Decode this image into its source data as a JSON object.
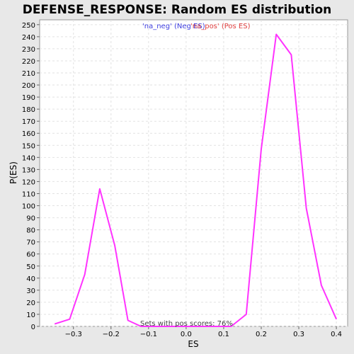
{
  "chart_data": {
    "type": "line",
    "title": "DEFENSE_RESPONSE: Random ES distribution",
    "xlabel": "ES",
    "ylabel": "P(ES)",
    "xlim": [
      -0.39,
      0.43
    ],
    "ylim": [
      0,
      254
    ],
    "x_ticks": [
      -0.3,
      -0.2,
      -0.1,
      0.0,
      0.1,
      0.2,
      0.3,
      0.4
    ],
    "x_tick_labels": [
      "−0.3",
      "−0.2",
      "−0.1",
      "0.0",
      "0.1",
      "0.2",
      "0.3",
      "0.4"
    ],
    "y_ticks": [
      0,
      10,
      20,
      30,
      40,
      50,
      60,
      70,
      80,
      90,
      100,
      110,
      120,
      130,
      140,
      150,
      160,
      170,
      180,
      190,
      200,
      210,
      220,
      230,
      240,
      250
    ],
    "grid": true,
    "legend": [
      {
        "label": "'na_neg' (Neg ES)",
        "color": "#4040e0"
      },
      {
        "label": "'na_pos' (Pos ES)",
        "color": "#e04040"
      }
    ],
    "annotation": "Sets with pos scores: 76%",
    "series": [
      {
        "color": "#ff33ff",
        "x": [
          -0.35,
          -0.31,
          -0.27,
          -0.23,
          -0.19,
          -0.155,
          -0.12,
          -0.08,
          -0.04,
          0.0,
          0.04,
          0.08,
          0.12,
          0.16,
          0.2,
          0.24,
          0.28,
          0.32,
          0.36,
          0.4
        ],
        "y": [
          2,
          6,
          43,
          114,
          67,
          5,
          0,
          0,
          0,
          0,
          0,
          0,
          0,
          10,
          147,
          242,
          225,
          98,
          34,
          6
        ]
      }
    ]
  }
}
